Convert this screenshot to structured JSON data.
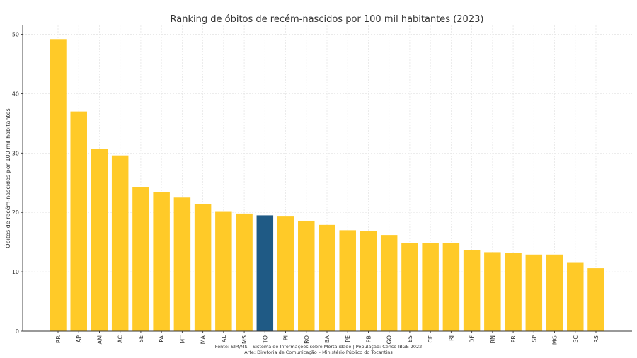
{
  "chart_data": {
    "type": "bar",
    "title": "Ranking de óbitos de recém-nascidos por 100 mil habitantes (2023)",
    "xlabel": "",
    "ylabel": "Óbitos de recém-nascidos por 100 mil habitantes",
    "categories": [
      "RR",
      "AP",
      "AM",
      "AC",
      "SE",
      "PA",
      "MT",
      "MA",
      "AL",
      "MS",
      "TO",
      "PI",
      "RO",
      "BA",
      "PE",
      "PB",
      "GO",
      "ES",
      "CE",
      "RJ",
      "DF",
      "RN",
      "PR",
      "SP",
      "MG",
      "SC",
      "RS"
    ],
    "values": [
      49.2,
      37.0,
      30.7,
      29.6,
      24.3,
      23.4,
      22.5,
      21.4,
      20.2,
      19.8,
      19.5,
      19.3,
      18.6,
      17.9,
      17.0,
      16.9,
      16.2,
      14.9,
      14.8,
      14.8,
      13.7,
      13.3,
      13.2,
      12.9,
      12.9,
      11.5,
      10.6
    ],
    "ylim": [
      0,
      51.5
    ],
    "yticks": [
      0,
      10,
      20,
      30,
      40,
      50
    ],
    "grid": true,
    "highlight_category": "TO",
    "colors": {
      "bar": "#FFCA28",
      "highlight": "#1F5A85",
      "grid": "#e6e6e6",
      "axis": "#333333",
      "text": "#333333"
    }
  },
  "footer": {
    "source": "Fonte: SIM/MS – Sistema de Informações sobre Mortalidade | População: Censo IBGE 2022",
    "credit": "Arte: Diretoria de Comunicação – Ministério Público do Tocantins"
  }
}
